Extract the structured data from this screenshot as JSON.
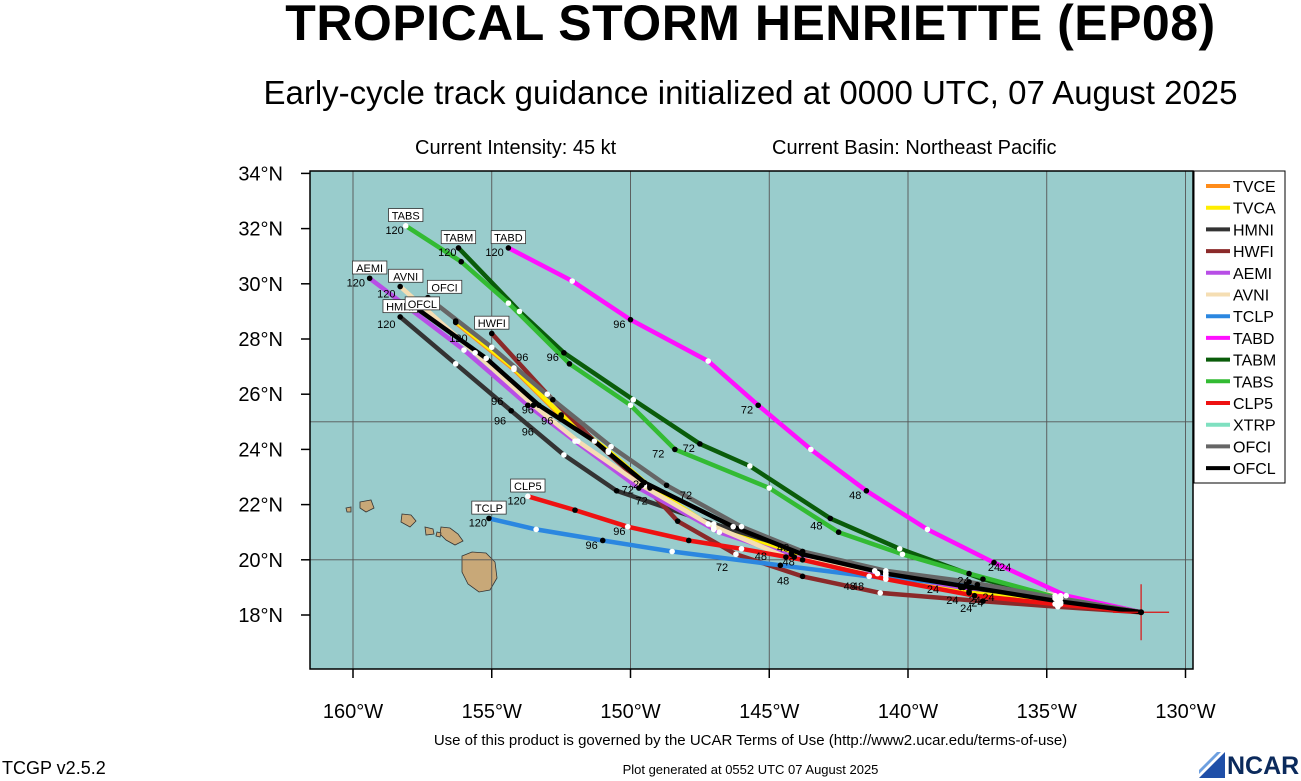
{
  "header": {
    "title": "TROPICAL STORM HENRIETTE (EP08)",
    "subtitle": "Early-cycle track guidance initialized at 0000 UTC, 07 August 2025",
    "intensity": "Current Intensity: 45 kt",
    "basin": "Current Basin: Northeast Pacific"
  },
  "footer": {
    "terms": "Use of this product is governed by the UCAR Terms of Use (http://www2.ucar.edu/terms-of-use)",
    "generated": "Plot generated at 0552 UTC   07 August 2025",
    "version": "TCGP v2.5.2",
    "logo": "NCAR"
  },
  "chart_data": {
    "type": "line",
    "xlim": [
      -161.5,
      -129.5
    ],
    "ylim": [
      16.3,
      34.0
    ],
    "x_ticks": [
      -160,
      -155,
      -150,
      -145,
      -140,
      -135,
      -130
    ],
    "x_tick_labels": [
      "160°W",
      "155°W",
      "150°W",
      "145°W",
      "140°W",
      "135°W",
      "130°W"
    ],
    "y_ticks": [
      18,
      20,
      22,
      24,
      26,
      28,
      30,
      32,
      34
    ],
    "y_tick_labels": [
      "18°N",
      "20°N",
      "22°N",
      "24°N",
      "26°N",
      "28°N",
      "30°N",
      "32°N",
      "34°N"
    ],
    "grid": true,
    "legend_position": "right",
    "colors": {
      "ocean": "#99cccc",
      "land": "#c8a878"
    },
    "current_position": [
      -131.6,
      18.1
    ],
    "series": [
      {
        "name": "TVCE",
        "color": "#ff8c1a",
        "points": [
          [
            -131.6,
            18.1
          ],
          [
            -134.5,
            18.4
          ],
          [
            -137.8,
            18.8
          ],
          [
            -140.8,
            19.4
          ],
          [
            -144.2,
            20.2
          ],
          [
            -147.0,
            21.1
          ],
          [
            -149.3,
            22.6
          ],
          [
            -150.8,
            23.9
          ],
          [
            -152.5,
            25.2
          ],
          [
            -154.2,
            26.9
          ],
          [
            -156.3,
            28.6
          ]
        ],
        "labels": []
      },
      {
        "name": "TVCA",
        "color": "#ffee00",
        "points": [
          [
            -131.6,
            18.1
          ],
          [
            -134.5,
            18.45
          ],
          [
            -137.8,
            18.85
          ],
          [
            -140.8,
            19.45
          ],
          [
            -144.2,
            20.25
          ],
          [
            -147.0,
            21.15
          ],
          [
            -149.3,
            22.65
          ],
          [
            -150.8,
            23.95
          ],
          [
            -152.5,
            25.25
          ],
          [
            -154.2,
            26.95
          ],
          [
            -156.3,
            28.65
          ]
        ],
        "labels": []
      },
      {
        "name": "HMNI",
        "color": "#333333",
        "points": [
          [
            -131.6,
            18.1
          ],
          [
            -134.6,
            18.6
          ],
          [
            -138.0,
            19.0
          ],
          [
            -140.8,
            19.5
          ],
          [
            -143.8,
            20.3
          ],
          [
            -147.0,
            21.3
          ],
          [
            -150.5,
            22.5
          ],
          [
            -152.4,
            23.8
          ],
          [
            -154.3,
            25.4
          ],
          [
            -156.3,
            27.1
          ],
          [
            -158.3,
            28.8
          ]
        ],
        "labels": [
          {
            "text": "120",
            "x": -158.8,
            "y": 28.4
          },
          {
            "text": "96",
            "x": -154.7,
            "y": 24.9
          }
        ],
        "box": {
          "text": "HMNI",
          "x": -158.3,
          "y": 29.1
        }
      },
      {
        "name": "HWFI",
        "color": "#8b2a2a",
        "points": [
          [
            -131.6,
            18.1
          ],
          [
            -134.6,
            18.3
          ],
          [
            -137.3,
            18.5
          ],
          [
            -141.0,
            18.8
          ],
          [
            -143.8,
            19.4
          ],
          [
            -146.2,
            20.2
          ],
          [
            -148.3,
            21.4
          ],
          [
            -149.5,
            22.7
          ],
          [
            -151.3,
            24.3
          ],
          [
            -153.0,
            26.0
          ],
          [
            -155.0,
            28.2
          ]
        ],
        "labels": [
          {
            "text": "120",
            "x": -156.2,
            "y": 27.9
          }
        ],
        "box": {
          "text": "HWFI",
          "x": -155.0,
          "y": 28.5
        }
      },
      {
        "name": "AEMI",
        "color": "#b84ee6",
        "points": [
          [
            -131.6,
            18.1
          ],
          [
            -134.7,
            18.7
          ],
          [
            -138.1,
            19.0
          ],
          [
            -141.1,
            19.5
          ],
          [
            -144.1,
            20.1
          ],
          [
            -146.8,
            21.0
          ],
          [
            -149.7,
            22.6
          ],
          [
            -152.0,
            24.3
          ],
          [
            -153.7,
            25.6
          ],
          [
            -156.0,
            27.6
          ],
          [
            -159.4,
            30.2
          ]
        ],
        "labels": [
          {
            "text": "120",
            "x": -159.9,
            "y": 29.9
          }
        ],
        "box": {
          "text": "AEMI",
          "x": -159.4,
          "y": 30.5
        }
      },
      {
        "name": "AVNI",
        "color": "#f5deb3",
        "points": [
          [
            -131.6,
            18.1
          ],
          [
            -134.5,
            18.7
          ],
          [
            -137.5,
            19.1
          ],
          [
            -141.2,
            19.6
          ],
          [
            -144.4,
            20.1
          ],
          [
            -147.2,
            21.3
          ],
          [
            -149.6,
            22.7
          ],
          [
            -151.9,
            24.3
          ],
          [
            -153.5,
            25.6
          ],
          [
            -155.6,
            27.5
          ],
          [
            -158.3,
            29.9
          ]
        ],
        "labels": [
          {
            "text": "120",
            "x": -158.8,
            "y": 29.5
          }
        ],
        "box": {
          "text": "AVNI",
          "x": -158.1,
          "y": 30.2
        }
      },
      {
        "name": "TCLP",
        "color": "#2b87e0",
        "points": [
          [
            -131.6,
            18.1
          ],
          [
            -134.6,
            18.6
          ],
          [
            -137.9,
            19.1
          ],
          [
            -141.4,
            19.4
          ],
          [
            -144.6,
            19.8
          ],
          [
            -148.5,
            20.3
          ],
          [
            -151.0,
            20.7
          ],
          [
            -153.4,
            21.1
          ],
          [
            -155.1,
            21.5
          ]
        ],
        "labels": [
          {
            "text": "72",
            "x": -146.7,
            "y": 19.6
          },
          {
            "text": "96",
            "x": -151.4,
            "y": 20.4
          },
          {
            "text": "120",
            "x": -155.5,
            "y": 21.2
          }
        ],
        "box": {
          "text": "TCLP",
          "x": -155.1,
          "y": 21.8
        }
      },
      {
        "name": "TABD",
        "color": "#ff10ff",
        "points": [
          [
            -131.6,
            18.1
          ],
          [
            -134.3,
            18.7
          ],
          [
            -136.9,
            19.9
          ],
          [
            -139.3,
            21.1
          ],
          [
            -141.5,
            22.5
          ],
          [
            -143.5,
            24.0
          ],
          [
            -145.4,
            25.6
          ],
          [
            -147.2,
            27.2
          ],
          [
            -150.0,
            28.7
          ],
          [
            -152.1,
            30.1
          ],
          [
            -154.4,
            31.3
          ]
        ],
        "labels": [
          {
            "text": "24",
            "x": -136.5,
            "y": 19.6
          },
          {
            "text": "48",
            "x": -141.9,
            "y": 22.2
          },
          {
            "text": "72",
            "x": -145.8,
            "y": 25.3
          },
          {
            "text": "96",
            "x": -150.4,
            "y": 28.4
          },
          {
            "text": "120",
            "x": -154.9,
            "y": 31.0
          }
        ],
        "box": {
          "text": "TABD",
          "x": -154.4,
          "y": 31.6
        }
      },
      {
        "name": "TABM",
        "color": "#0a5c0a",
        "points": [
          [
            -131.6,
            18.1
          ],
          [
            -134.7,
            18.6
          ],
          [
            -137.3,
            19.3
          ],
          [
            -140.3,
            20.4
          ],
          [
            -142.8,
            21.5
          ],
          [
            -145.7,
            23.4
          ],
          [
            -147.5,
            24.2
          ],
          [
            -149.9,
            25.8
          ],
          [
            -152.4,
            27.5
          ],
          [
            -154.0,
            29.0
          ],
          [
            -156.2,
            31.3
          ]
        ],
        "labels": [
          {
            "text": "24",
            "x": -136.9,
            "y": 19.6
          },
          {
            "text": "72",
            "x": -147.9,
            "y": 23.9
          },
          {
            "text": "96",
            "x": -152.8,
            "y": 27.2
          },
          {
            "text": "120",
            "x": -156.6,
            "y": 31.0
          }
        ],
        "box": {
          "text": "TABM",
          "x": -156.2,
          "y": 31.6
        }
      },
      {
        "name": "TABS",
        "color": "#33bb33",
        "points": [
          [
            -131.6,
            18.1
          ],
          [
            -134.5,
            18.6
          ],
          [
            -137.8,
            19.5
          ],
          [
            -140.2,
            20.2
          ],
          [
            -142.5,
            21.0
          ],
          [
            -145.0,
            22.6
          ],
          [
            -148.4,
            24.0
          ],
          [
            -150.0,
            25.6
          ],
          [
            -152.2,
            27.1
          ],
          [
            -154.4,
            29.3
          ],
          [
            -156.1,
            30.8
          ],
          [
            -158.1,
            32.1
          ]
        ],
        "labels": [
          {
            "text": "48",
            "x": -143.3,
            "y": 21.1
          },
          {
            "text": "72",
            "x": -149.0,
            "y": 23.7
          },
          {
            "text": "96",
            "x": -153.9,
            "y": 27.2
          },
          {
            "text": "120",
            "x": -158.5,
            "y": 31.8
          }
        ],
        "box": {
          "text": "TABS",
          "x": -158.1,
          "y": 32.4
        }
      },
      {
        "name": "CLP5",
        "color": "#ee1111",
        "points": [
          [
            -131.6,
            18.1
          ],
          [
            -134.7,
            18.4
          ],
          [
            -137.6,
            18.7
          ],
          [
            -140.8,
            19.3
          ],
          [
            -143.8,
            20.0
          ],
          [
            -146.0,
            20.4
          ],
          [
            -147.9,
            20.7
          ],
          [
            -150.1,
            21.2
          ],
          [
            -152.0,
            21.8
          ],
          [
            -153.7,
            22.3
          ]
        ],
        "labels": [
          {
            "text": "96",
            "x": -150.4,
            "y": 20.9
          },
          {
            "text": "120",
            "x": -154.1,
            "y": 22.0
          }
        ],
        "box": {
          "text": "CLP5",
          "x": -153.7,
          "y": 22.6
        }
      },
      {
        "name": "XTRP",
        "color": "#7fe0c0",
        "points": [],
        "labels": []
      },
      {
        "name": "OFCI",
        "color": "#666666",
        "points": [
          [
            -131.6,
            18.1
          ],
          [
            -134.6,
            18.6
          ],
          [
            -137.8,
            19.2
          ],
          [
            -140.8,
            19.6
          ],
          [
            -143.8,
            20.3
          ],
          [
            -146.0,
            21.2
          ],
          [
            -148.7,
            22.7
          ],
          [
            -150.7,
            24.1
          ],
          [
            -152.8,
            25.8
          ],
          [
            -155.0,
            27.7
          ],
          [
            -157.3,
            29.5
          ]
        ],
        "labels": [
          {
            "text": "120",
            "x": -157.7,
            "y": 29.1
          },
          {
            "text": "96",
            "x": -153.0,
            "y": 24.9
          }
        ],
        "box": {
          "text": "OFCI",
          "x": -156.7,
          "y": 29.8
        }
      },
      {
        "name": "OFCL",
        "color": "#000000",
        "points": [
          [
            -131.6,
            18.1
          ],
          [
            -134.6,
            18.5
          ],
          [
            -137.7,
            19.0
          ],
          [
            -140.8,
            19.5
          ],
          [
            -143.8,
            20.2
          ],
          [
            -146.3,
            21.2
          ],
          [
            -149.5,
            22.8
          ],
          [
            -151.3,
            24.3
          ],
          [
            -153.3,
            25.6
          ],
          [
            -155.2,
            27.3
          ],
          [
            -157.7,
            29.1
          ]
        ],
        "labels": [
          {
            "text": "96",
            "x": -153.7,
            "y": 25.3
          },
          {
            "text": "72",
            "x": -148.0,
            "y": 22.2
          },
          {
            "text": "24",
            "x": -137.5,
            "y": 18.3
          },
          {
            "text": "48",
            "x": -144.5,
            "y": 19.1
          }
        ],
        "box": {
          "text": "OFCL",
          "x": -157.5,
          "y": 29.2
        }
      }
    ],
    "extra_labels": [
      {
        "text": "72",
        "x": -150.1,
        "y": 22.4
      },
      {
        "text": "72",
        "x": -149.6,
        "y": 22.0
      },
      {
        "text": "2",
        "x": -149.8,
        "y": 22.6
      },
      {
        "text": "48",
        "x": -144.5,
        "y": 20.3
      },
      {
        "text": "48",
        "x": -144.3,
        "y": 19.8
      },
      {
        "text": "48",
        "x": -145.3,
        "y": 20.0
      },
      {
        "text": "48",
        "x": -142.1,
        "y": 18.9
      },
      {
        "text": "48",
        "x": -141.8,
        "y": 18.9
      },
      {
        "text": "24",
        "x": -139.1,
        "y": 18.8
      },
      {
        "text": "24",
        "x": -137.9,
        "y": 18.1
      },
      {
        "text": "24",
        "x": -138.4,
        "y": 18.4
      },
      {
        "text": "24",
        "x": -137.6,
        "y": 18.4
      },
      {
        "text": "24",
        "x": -138.0,
        "y": 19.1
      },
      {
        "text": "24",
        "x": -137.1,
        "y": 18.5
      },
      {
        "text": "96",
        "x": -154.8,
        "y": 25.6
      },
      {
        "text": "96",
        "x": -153.7,
        "y": 24.5
      }
    ]
  }
}
